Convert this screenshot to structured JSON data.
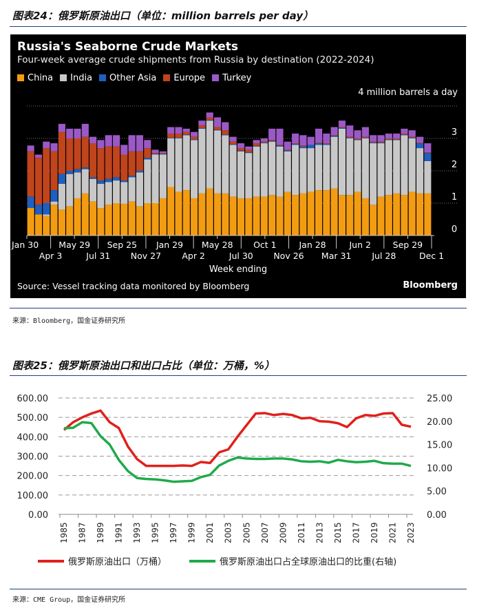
{
  "fig24": {
    "title": "图表24：俄罗斯原油出口（单位：million barrels per day）",
    "source": "来源：Bloomberg，国金证券研究所"
  },
  "fig25": {
    "title": "图表25：俄罗斯原油出口和出口占比（单位：万桶，%）",
    "source": "来源：CME Group，国金证券研究所"
  },
  "chart_data": [
    {
      "type": "bar",
      "stacked": true,
      "title": "Russia's Seaborne Crude Markets",
      "subtitle": "Four-week average crude shipments from Russia by destination (2022-2024)",
      "unit_label": "4 million barrels a day",
      "xlabel": "Week ending",
      "ylabel": "",
      "ylim": [
        0,
        4
      ],
      "yticks": [
        "0",
        "1",
        "2",
        "3"
      ],
      "grid": true,
      "legend": "top-left",
      "source": "Source: Vessel tracking data monitored by Bloomberg",
      "brand": "Bloomberg",
      "xticks": [
        "Jan 30",
        "Apr 3",
        "May 29",
        "Jul 31",
        "Sep 25",
        "Nov 27",
        "Jan 29",
        "Apr 2",
        "May 28",
        "Jul 30",
        "Oct 1",
        "Nov 26",
        "Jan 28",
        "Mar 31",
        "Jun 2",
        "Jul 28",
        "Sep 29",
        "Dec 1"
      ],
      "series": [
        {
          "name": "China",
          "color": "#f39c12",
          "values": [
            0.85,
            0.65,
            0.6,
            0.95,
            0.8,
            0.9,
            1.15,
            1.3,
            1.05,
            0.85,
            0.95,
            1.0,
            0.98,
            1.05,
            0.9,
            1.0,
            1.0,
            1.15,
            1.5,
            1.35,
            1.4,
            1.15,
            1.3,
            1.45,
            1.3,
            1.3,
            1.2,
            1.15,
            1.15,
            1.2,
            1.2,
            1.25,
            1.2,
            1.35,
            1.25,
            1.3,
            1.35,
            1.4,
            1.4,
            1.45,
            1.25,
            1.25,
            1.35,
            1.15,
            0.95,
            1.2,
            1.25,
            1.3,
            1.25,
            1.35,
            1.3,
            1.3
          ]
        },
        {
          "name": "India",
          "color": "#c8c8c8",
          "values": [
            0,
            0,
            0.05,
            0.1,
            0.8,
            1.0,
            0.8,
            0.75,
            0.7,
            0.75,
            0.7,
            0.7,
            0.67,
            0.75,
            1.05,
            1.35,
            1.5,
            1.35,
            1.5,
            1.65,
            1.7,
            1.8,
            2.0,
            2.1,
            1.95,
            1.8,
            1.6,
            1.45,
            1.4,
            1.55,
            1.65,
            1.65,
            1.55,
            1.25,
            1.55,
            1.4,
            1.35,
            1.4,
            1.4,
            1.6,
            2.05,
            1.75,
            1.6,
            1.85,
            1.9,
            1.65,
            1.7,
            1.65,
            1.85,
            1.65,
            1.4,
            1.0
          ]
        },
        {
          "name": "Other Asia",
          "color": "#1f5fbf",
          "values": [
            0.35,
            0.3,
            0.35,
            0.35,
            0.3,
            0.1,
            0.1,
            0.05,
            0.05,
            0.1,
            0.1,
            0.1,
            0.05,
            0.05,
            0.05,
            0.05,
            0.02,
            0.02,
            0.02,
            0.02,
            0.02,
            0.02,
            0.02,
            0.02,
            0.02,
            0.02,
            0.02,
            0.02,
            0.02,
            0.02,
            0.02,
            0.02,
            0.03,
            0.03,
            0.03,
            0.05,
            0.1,
            0.05,
            0.03,
            0.03,
            0.03,
            0.02,
            0.02,
            0.02,
            0.02,
            0.02,
            0.02,
            0.02,
            0.02,
            0.02,
            0.15,
            0.25
          ]
        },
        {
          "name": "Europe",
          "color": "#c0441c",
          "values": [
            1.4,
            1.45,
            1.7,
            1.2,
            1.3,
            1.0,
            0.95,
            0.95,
            1.05,
            1.0,
            1.0,
            0.95,
            0.8,
            0.75,
            0.6,
            0.3,
            0.03,
            0.03,
            0.13,
            0.13,
            0.08,
            0.08,
            0.08,
            0.08,
            0.08,
            0.13,
            0.08,
            0.08,
            0.08,
            0.08,
            0.03,
            0.03,
            0.02,
            0.02,
            0.02,
            0.03,
            0,
            0.02,
            0.02,
            0.02,
            0.02,
            0.03,
            0.03,
            0.03,
            0.03,
            0.03,
            0.03,
            0.03,
            0.03,
            0.03,
            0.02,
            0.02
          ]
        },
        {
          "name": "Turkey",
          "color": "#9b59c6",
          "values": [
            0.18,
            0.1,
            0.2,
            0.25,
            0.25,
            0.3,
            0.3,
            0.4,
            0.2,
            0.25,
            0.35,
            0.35,
            0.3,
            0.5,
            0.5,
            0.25,
            0.1,
            0.05,
            0.2,
            0.2,
            0.1,
            0.15,
            0.15,
            0.15,
            0.3,
            0.25,
            0.15,
            0.15,
            0.1,
            0.1,
            0.1,
            0.35,
            0.5,
            0.25,
            0.3,
            0.32,
            0.25,
            0.43,
            0.3,
            0.25,
            0.2,
            0.35,
            0.25,
            0.3,
            0.2,
            0.2,
            0.15,
            0.15,
            0.15,
            0.2,
            0.18,
            0.28
          ]
        }
      ]
    },
    {
      "type": "line",
      "title": "俄罗斯原油出口和出口占比",
      "xlabel": "",
      "ylabel": "万桶",
      "ylabel_right": "%",
      "ylim": [
        0,
        600
      ],
      "ylim_right": [
        0,
        25
      ],
      "yticks": [
        "0.00",
        "100.00",
        "200.00",
        "300.00",
        "400.00",
        "500.00",
        "600.00"
      ],
      "yticks_right": [
        "0.00",
        "5.00",
        "10.00",
        "15.00",
        "20.00",
        "25.00"
      ],
      "grid": true,
      "legend": "bottom",
      "x": [
        1985,
        1986,
        1987,
        1988,
        1989,
        1990,
        1991,
        1992,
        1993,
        1994,
        1995,
        1996,
        1997,
        1998,
        1999,
        2000,
        2001,
        2002,
        2003,
        2004,
        2005,
        2006,
        2007,
        2008,
        2009,
        2010,
        2011,
        2012,
        2013,
        2014,
        2015,
        2016,
        2017,
        2018,
        2019,
        2020,
        2021,
        2022,
        2023
      ],
      "series": [
        {
          "name": "俄罗斯原油出口（万桶）",
          "axis": "left",
          "color": "#e0201b",
          "values": [
            435,
            475,
            500,
            520,
            535,
            475,
            445,
            350,
            285,
            250,
            250,
            250,
            250,
            252,
            250,
            270,
            265,
            320,
            335,
            400,
            460,
            520,
            522,
            512,
            518,
            512,
            495,
            498,
            480,
            478,
            470,
            450,
            495,
            512,
            508,
            520,
            522,
            462,
            452
          ]
        },
        {
          "name": "俄罗斯原油出口占全球原油出口的比重(右轴)",
          "axis": "right",
          "color": "#1faa4a",
          "values": [
            18.5,
            18.6,
            19.8,
            19.6,
            16.8,
            15.0,
            11.7,
            9.3,
            7.8,
            7.6,
            7.5,
            7.3,
            7.0,
            7.1,
            7.2,
            8.0,
            8.5,
            10.5,
            11.5,
            12.2,
            12.0,
            11.9,
            11.9,
            12.0,
            12.0,
            11.8,
            11.4,
            11.3,
            11.4,
            11.1,
            11.7,
            11.4,
            11.2,
            11.3,
            11.5,
            11.0,
            10.9,
            10.9,
            10.4
          ]
        }
      ]
    }
  ]
}
